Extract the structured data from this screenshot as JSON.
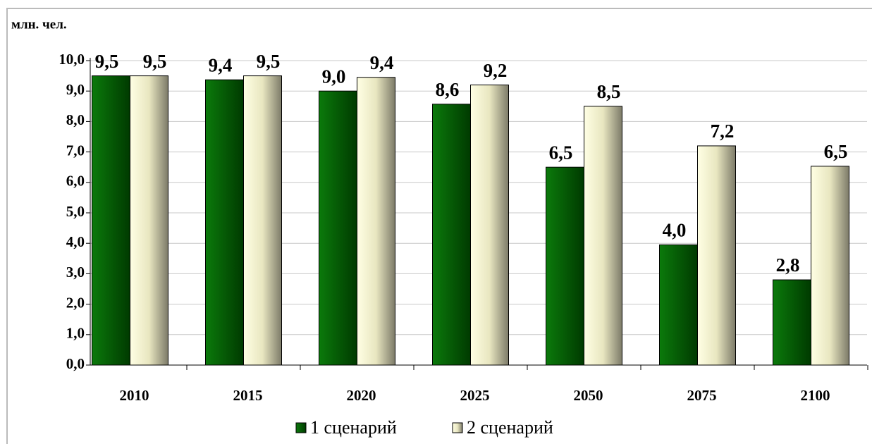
{
  "chart_data": {
    "type": "bar",
    "y_axis_label": "млн. чел.",
    "categories": [
      "2010",
      "2015",
      "2020",
      "2025",
      "2050",
      "2075",
      "2100"
    ],
    "series": [
      {
        "name": "1 сценарий",
        "color": "#006400",
        "values": [
          9.5,
          9.37,
          9.0,
          8.57,
          6.5,
          3.95,
          2.8
        ],
        "value_labels": [
          "9,5",
          "9,4",
          "9,0",
          "8,6",
          "6,5",
          "4,0",
          "2,8"
        ]
      },
      {
        "name": "2 сценарий",
        "color": "#ffffcc",
        "values": [
          9.5,
          9.5,
          9.45,
          9.2,
          8.5,
          7.2,
          6.53
        ],
        "value_labels": [
          "9,5",
          "9,5",
          "9,4",
          "9,2",
          "8,5",
          "7,2",
          "6,5"
        ]
      }
    ],
    "ylim": [
      0,
      10
    ],
    "yticks": [
      {
        "value": 0,
        "label": "0,0"
      },
      {
        "value": 1,
        "label": "1,0"
      },
      {
        "value": 2,
        "label": "2,0"
      },
      {
        "value": 3,
        "label": "3,0"
      },
      {
        "value": 4,
        "label": "4,0"
      },
      {
        "value": 5,
        "label": "5,0"
      },
      {
        "value": 6,
        "label": "6,0"
      },
      {
        "value": 7,
        "label": "7,0"
      },
      {
        "value": 8,
        "label": "8,0"
      },
      {
        "value": 9,
        "label": "9,0"
      },
      {
        "value": 10,
        "label": "10,0"
      }
    ],
    "grid": true,
    "legend": "bottom"
  }
}
